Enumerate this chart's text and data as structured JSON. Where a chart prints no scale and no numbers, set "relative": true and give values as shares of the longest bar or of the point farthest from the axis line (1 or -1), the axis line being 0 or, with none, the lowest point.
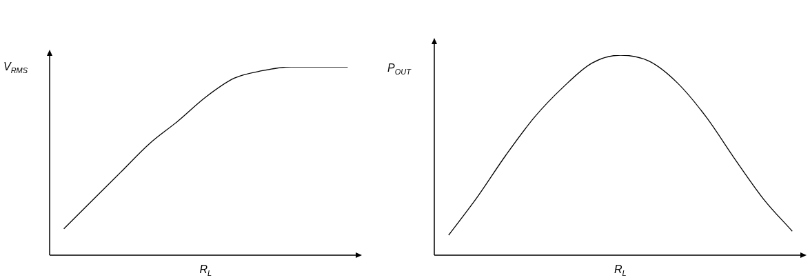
{
  "chart_data": [
    {
      "type": "line",
      "ylabel": "V$_{RMS}$",
      "xlabel": "R$_{L}$",
      "relative": true,
      "color": "#000000",
      "categories": [
        null,
        null,
        null,
        null,
        null,
        null,
        null,
        null,
        null,
        null,
        null
      ],
      "values": [
        0.14,
        0.29,
        0.44,
        0.59,
        0.71,
        0.84,
        0.94,
        0.98,
        1.0,
        1.0,
        1.0
      ]
    },
    {
      "type": "line",
      "ylabel": "P$_{OUT}$",
      "xlabel": "R$_{L}$",
      "relative": true,
      "color": "#000000",
      "categories": [
        null,
        null,
        null,
        null,
        null,
        null,
        null,
        null,
        null,
        null,
        null,
        null,
        null
      ],
      "values": [
        0.1,
        0.29,
        0.5,
        0.69,
        0.84,
        0.96,
        1.0,
        0.97,
        0.86,
        0.69,
        0.48,
        0.28,
        0.12
      ]
    }
  ]
}
